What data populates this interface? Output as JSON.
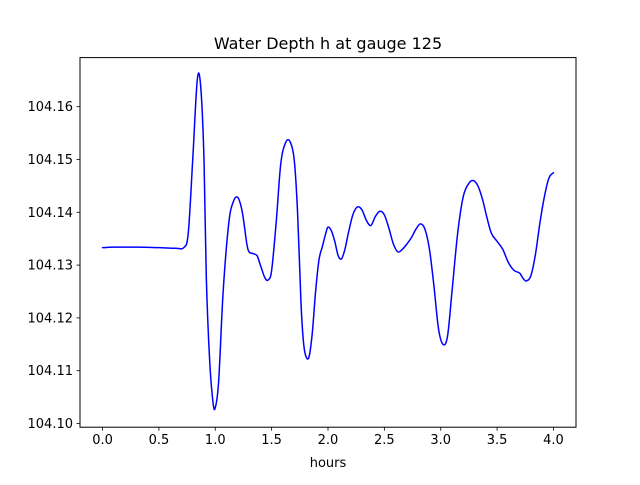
{
  "chart_data": {
    "type": "line",
    "title": "Water Depth h at gauge 125",
    "xlabel": "hours",
    "ylabel": "",
    "xlim": [
      -0.2,
      4.2
    ],
    "ylim": [
      104.0993,
      104.1693
    ],
    "xticks": [
      0.0,
      0.5,
      1.0,
      1.5,
      2.0,
      2.5,
      3.0,
      3.5,
      4.0
    ],
    "xtick_labels": [
      "0.0",
      "0.5",
      "1.0",
      "1.5",
      "2.0",
      "2.5",
      "3.0",
      "3.5",
      "4.0"
    ],
    "yticks": [
      104.1,
      104.11,
      104.12,
      104.13,
      104.14,
      104.15,
      104.16
    ],
    "ytick_labels": [
      "104.10",
      "104.11",
      "104.12",
      "104.13",
      "104.14",
      "104.15",
      "104.16"
    ],
    "grid": false,
    "series": [
      {
        "color": "#0000ff",
        "x": [
          0.0,
          0.1,
          0.3,
          0.5,
          0.65,
          0.72,
          0.76,
          0.8,
          0.84,
          0.87,
          0.9,
          0.92,
          0.95,
          0.98,
          1.0,
          1.03,
          1.07,
          1.12,
          1.16,
          1.2,
          1.24,
          1.28,
          1.3,
          1.33,
          1.37,
          1.4,
          1.44,
          1.47,
          1.5,
          1.54,
          1.58,
          1.62,
          1.66,
          1.7,
          1.73,
          1.76,
          1.78,
          1.8,
          1.83,
          1.86,
          1.89,
          1.92,
          1.95,
          1.98,
          2.0,
          2.03,
          2.06,
          2.09,
          2.12,
          2.15,
          2.18,
          2.22,
          2.26,
          2.3,
          2.34,
          2.38,
          2.42,
          2.46,
          2.5,
          2.54,
          2.58,
          2.62,
          2.66,
          2.7,
          2.74,
          2.78,
          2.82,
          2.86,
          2.9,
          2.94,
          2.98,
          3.02,
          3.06,
          3.1,
          3.15,
          3.2,
          3.25,
          3.29,
          3.33,
          3.37,
          3.41,
          3.45,
          3.5,
          3.55,
          3.6,
          3.65,
          3.7,
          3.73,
          3.76,
          3.8,
          3.84,
          3.88,
          3.92,
          3.96,
          4.0
        ],
        "y": [
          104.1333,
          104.1334,
          104.1334,
          104.1333,
          104.1332,
          104.1333,
          104.136,
          104.15,
          104.165,
          104.164,
          104.15,
          104.128,
          104.112,
          104.104,
          104.103,
          104.108,
          104.125,
          104.138,
          104.142,
          104.1428,
          104.14,
          104.134,
          104.1325,
          104.1322,
          104.1318,
          104.13,
          104.1276,
          104.1272,
          104.129,
          104.138,
          104.149,
          104.153,
          104.1535,
          104.15,
          104.14,
          104.123,
          104.116,
          104.113,
          104.1125,
          104.117,
          104.125,
          104.131,
          104.1335,
          104.136,
          104.1372,
          104.1365,
          104.1345,
          104.1318,
          104.1312,
          104.133,
          104.136,
          104.1395,
          104.141,
          104.1405,
          104.1385,
          104.1375,
          104.1392,
          104.1402,
          104.1395,
          104.137,
          104.134,
          104.1325,
          104.133,
          104.134,
          104.1352,
          104.1368,
          104.1378,
          104.1368,
          104.133,
          104.126,
          104.118,
          104.115,
          104.1165,
          104.125,
          104.136,
          104.143,
          104.1455,
          104.146,
          104.145,
          104.1425,
          104.139,
          104.136,
          104.1345,
          104.133,
          104.1305,
          104.129,
          104.1285,
          104.1275,
          104.127,
          104.128,
          104.132,
          104.138,
          104.143,
          104.1465,
          104.1475
        ]
      }
    ]
  }
}
